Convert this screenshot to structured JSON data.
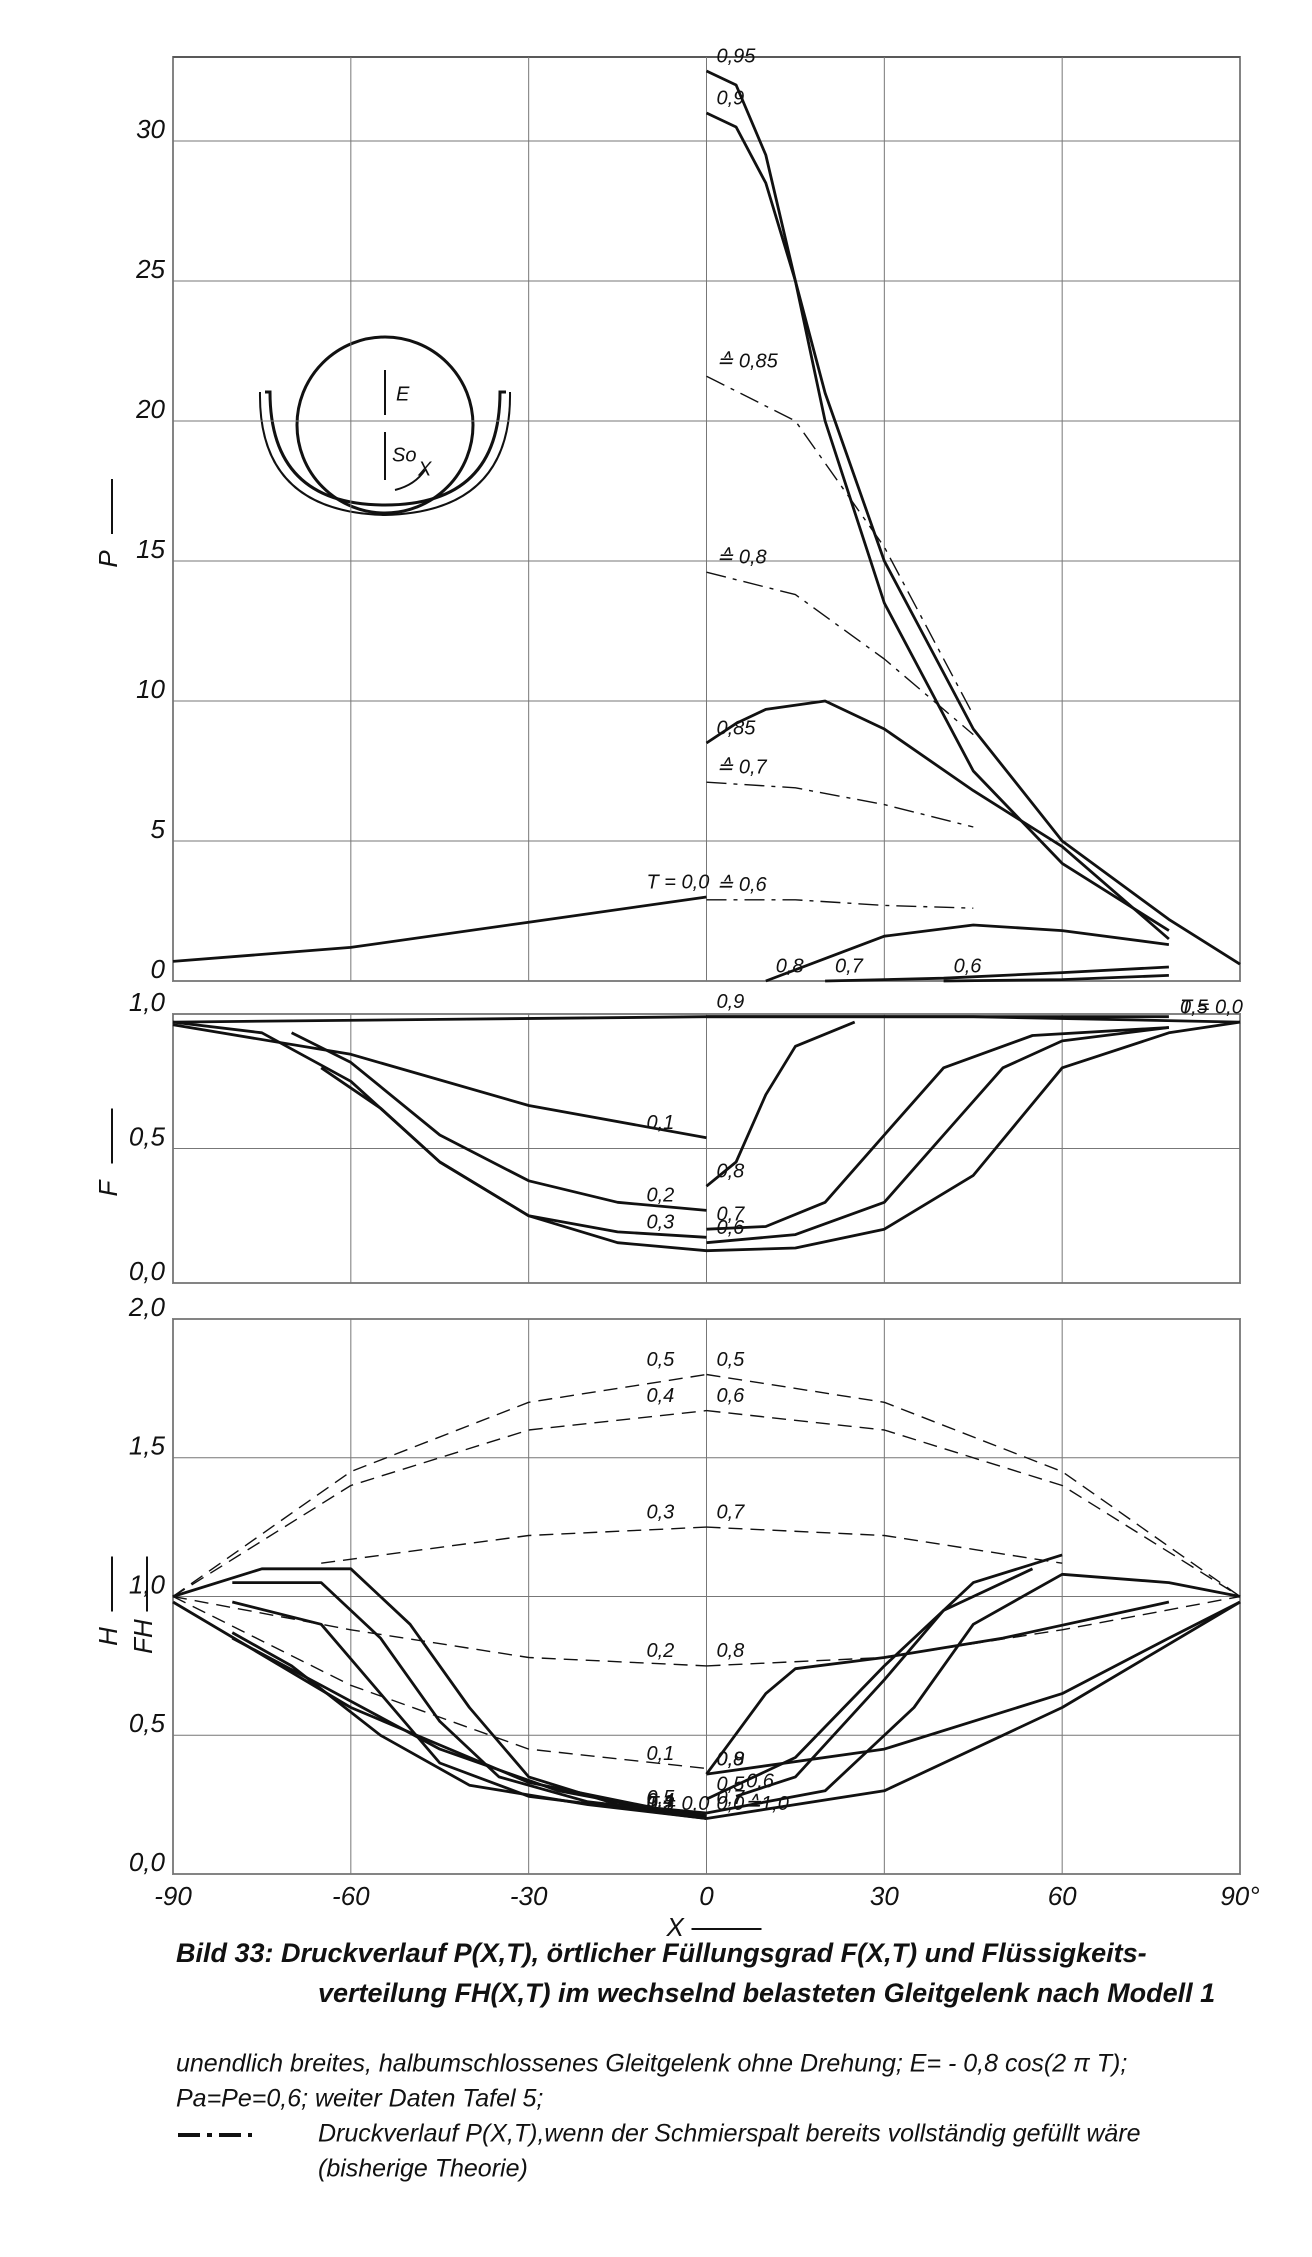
{
  "chart_data": [
    {
      "type": "line",
      "ylabel": "P",
      "xlim": [
        -90,
        90
      ],
      "ylim": [
        0,
        33
      ],
      "xticks": [
        -90,
        -60,
        -30,
        0,
        30,
        60,
        90
      ],
      "yticks": [
        0,
        5,
        10,
        15,
        20,
        25,
        30
      ],
      "grid": true,
      "series": [
        {
          "name": "0,95",
          "color": "#111111",
          "style": "solid",
          "x": [
            0,
            5,
            10,
            15,
            20,
            30,
            45,
            60,
            78
          ],
          "values": [
            32.5,
            32,
            29.5,
            25,
            20,
            13.5,
            7.5,
            4.2,
            1.8
          ]
        },
        {
          "name": "0,9",
          "color": "#111111",
          "style": "solid",
          "x": [
            0,
            5,
            10,
            15,
            20,
            30,
            45,
            60,
            78,
            90
          ],
          "values": [
            31,
            30.5,
            28.5,
            25,
            21,
            15,
            9,
            5,
            2.2,
            0.6
          ]
        },
        {
          "name": "≙ 0,85",
          "color": "#111111",
          "style": "dashdot",
          "x": [
            0,
            15,
            30,
            45
          ],
          "values": [
            21.6,
            20,
            15.5,
            9.5
          ]
        },
        {
          "name": "≙ 0,8",
          "color": "#111111",
          "style": "dashdot",
          "x": [
            0,
            15,
            30,
            45
          ],
          "values": [
            14.6,
            13.8,
            11.5,
            8.8
          ]
        },
        {
          "name": "0,85",
          "color": "#111111",
          "style": "solid",
          "x": [
            0,
            5,
            10,
            20,
            30,
            45,
            60,
            78
          ],
          "values": [
            8.5,
            9.2,
            9.7,
            10,
            9,
            6.8,
            4.8,
            1.5
          ]
        },
        {
          "name": "≙ 0,7",
          "color": "#111111",
          "style": "dashdot",
          "x": [
            0,
            15,
            30,
            45
          ],
          "values": [
            7.1,
            6.9,
            6.3,
            5.5
          ]
        },
        {
          "name": "≙ 0,6",
          "color": "#111111",
          "style": "dashdot",
          "x": [
            0,
            15,
            30,
            45
          ],
          "values": [
            2.9,
            2.9,
            2.7,
            2.6
          ]
        },
        {
          "name": "0,8",
          "color": "#111111",
          "style": "solid",
          "x": [
            10,
            20,
            30,
            45,
            60,
            78
          ],
          "values": [
            0,
            0.8,
            1.6,
            2.0,
            1.8,
            1.3
          ]
        },
        {
          "name": "0,7",
          "color": "#111111",
          "style": "solid",
          "x": [
            20,
            40,
            60,
            78
          ],
          "values": [
            0,
            0.1,
            0.3,
            0.5
          ]
        },
        {
          "name": "0,6",
          "color": "#111111",
          "style": "solid",
          "x": [
            40,
            60,
            78
          ],
          "values": [
            0,
            0.05,
            0.2
          ]
        },
        {
          "name": "T = 0,0",
          "color": "#111111",
          "style": "solid",
          "x": [
            -90,
            -60,
            -30,
            0
          ],
          "values": [
            0.7,
            1.2,
            2.1,
            3.0
          ]
        }
      ]
    },
    {
      "type": "line",
      "ylabel": "F",
      "xlim": [
        -90,
        90
      ],
      "ylim": [
        0,
        1
      ],
      "xticks": [
        -90,
        -60,
        -30,
        0,
        30,
        60,
        90
      ],
      "yticks": [
        {
          "value": 0,
          "label": "0,0"
        },
        {
          "value": 0.5,
          "label": "0,5"
        },
        {
          "value": 1,
          "label": "1,0"
        }
      ],
      "grid": true,
      "series": [
        {
          "name": "T = 0,0",
          "color": "#111111",
          "style": "solid",
          "x": [
            -90,
            -45,
            0,
            45,
            90
          ],
          "values": [
            0.97,
            0.98,
            0.99,
            0.99,
            0.97
          ]
        },
        {
          "name": "0,1",
          "color": "#111111",
          "style": "solid",
          "x": [
            -90,
            -60,
            -30,
            0
          ],
          "values": [
            0.96,
            0.85,
            0.66,
            0.54
          ]
        },
        {
          "name": "0,2",
          "color": "#111111",
          "style": "solid",
          "x": [
            -70,
            -60,
            -45,
            -30,
            -15,
            0
          ],
          "values": [
            0.93,
            0.82,
            0.55,
            0.38,
            0.3,
            0.27
          ]
        },
        {
          "name": "0,3",
          "color": "#111111",
          "style": "solid",
          "x": [
            -65,
            -55,
            -45,
            -30,
            -15,
            0
          ],
          "values": [
            0.8,
            0.65,
            0.45,
            0.25,
            0.19,
            0.17
          ]
        },
        {
          "name": "0,5",
          "color": "#111111",
          "style": "solid",
          "x": [
            -90,
            -75,
            -60,
            -45,
            -30,
            -15,
            0,
            15,
            30,
            45,
            60,
            78,
            90
          ],
          "values": [
            0.97,
            0.93,
            0.75,
            0.45,
            0.25,
            0.15,
            0.12,
            0.13,
            0.2,
            0.4,
            0.8,
            0.93,
            0.97
          ]
        },
        {
          "name": "0,8",
          "color": "#111111",
          "style": "solid",
          "x": [
            0,
            5,
            10,
            15,
            25
          ],
          "values": [
            0.36,
            0.45,
            0.7,
            0.88,
            0.97
          ]
        },
        {
          "name": "0,7",
          "color": "#111111",
          "style": "solid",
          "x": [
            0,
            10,
            20,
            30,
            40,
            55,
            78
          ],
          "values": [
            0.2,
            0.21,
            0.3,
            0.55,
            0.8,
            0.92,
            0.95
          ]
        },
        {
          "name": "0,6",
          "color": "#111111",
          "style": "solid",
          "x": [
            0,
            15,
            30,
            40,
            50,
            60,
            78
          ],
          "values": [
            0.15,
            0.18,
            0.3,
            0.55,
            0.8,
            0.9,
            0.95
          ]
        },
        {
          "name": "0,9",
          "color": "#111111",
          "style": "solid",
          "x": [
            0,
            45,
            78
          ],
          "values": [
            0.99,
            0.99,
            0.99
          ]
        }
      ]
    },
    {
      "type": "line",
      "ylabels": [
        "H",
        "FH"
      ],
      "xlabel": "X",
      "xlim": [
        -90,
        90
      ],
      "ylim": [
        0,
        2
      ],
      "xticks": [
        -90,
        -60,
        -30,
        0,
        30,
        60,
        {
          "value": 90,
          "label": "90°"
        }
      ],
      "yticks": [
        {
          "value": 0,
          "label": "0,0"
        },
        {
          "value": 0.5,
          "label": "0,5"
        },
        {
          "value": 1,
          "label": "1,0"
        },
        {
          "value": 1.5,
          "label": "1,5"
        },
        {
          "value": 2,
          "label": "2,0"
        }
      ],
      "grid": true,
      "series": [
        {
          "name": "0,5",
          "color": "#111111",
          "style": "dashed",
          "x": [
            -90,
            -60,
            -30,
            0
          ],
          "values": [
            1.0,
            1.45,
            1.7,
            1.8
          ]
        },
        {
          "name": "0,5",
          "color": "#111111",
          "style": "dashed",
          "x": [
            0,
            30,
            60,
            90
          ],
          "values": [
            1.8,
            1.7,
            1.45,
            1.0
          ]
        },
        {
          "name": "0,4",
          "color": "#111111",
          "style": "dashed",
          "x": [
            -90,
            -60,
            -30,
            0
          ],
          "values": [
            1.0,
            1.4,
            1.6,
            1.67
          ]
        },
        {
          "name": "0,6",
          "color": "#111111",
          "style": "dashed",
          "x": [
            0,
            30,
            60,
            90
          ],
          "values": [
            1.67,
            1.6,
            1.4,
            1.0
          ]
        },
        {
          "name": "0,3",
          "color": "#111111",
          "style": "dashed",
          "x": [
            -65,
            -30,
            0
          ],
          "values": [
            1.12,
            1.22,
            1.25
          ]
        },
        {
          "name": "0,7",
          "color": "#111111",
          "style": "dashed",
          "x": [
            0,
            30,
            60
          ],
          "values": [
            1.25,
            1.22,
            1.12
          ]
        },
        {
          "name": "0,2",
          "color": "#111111",
          "style": "dashed",
          "x": [
            -90,
            -60,
            -30,
            0
          ],
          "values": [
            1.0,
            0.88,
            0.78,
            0.75
          ]
        },
        {
          "name": "0,8",
          "color": "#111111",
          "style": "dashed",
          "x": [
            0,
            30,
            60,
            90
          ],
          "values": [
            0.75,
            0.78,
            0.88,
            1.0
          ]
        },
        {
          "name": "0,1",
          "color": "#111111",
          "style": "dashed",
          "x": [
            -90,
            -60,
            -30,
            0
          ],
          "values": [
            1.0,
            0.68,
            0.45,
            0.38
          ]
        },
        {
          "name": "0,5",
          "color": "#111111",
          "style": "solid",
          "x": [
            -90,
            -75,
            -60,
            -50,
            -40,
            -30,
            -15,
            0
          ],
          "values": [
            1.0,
            1.1,
            1.1,
            0.9,
            0.6,
            0.35,
            0.25,
            0.22
          ]
        },
        {
          "name": "0,4",
          "color": "#111111",
          "style": "solid",
          "x": [
            -80,
            -65,
            -55,
            -45,
            -35,
            -20,
            0
          ],
          "values": [
            1.05,
            1.05,
            0.85,
            0.55,
            0.35,
            0.26,
            0.21
          ]
        },
        {
          "name": "0,3",
          "color": "#111111",
          "style": "solid",
          "x": [
            -80,
            -65,
            -55,
            -45,
            -30,
            0
          ],
          "values": [
            0.98,
            0.9,
            0.65,
            0.4,
            0.28,
            0.2
          ]
        },
        {
          "name": "0,2",
          "color": "#111111",
          "style": "solid",
          "x": [
            -80,
            -70,
            -55,
            -40,
            -20,
            0
          ],
          "values": [
            0.87,
            0.75,
            0.5,
            0.32,
            0.25,
            0.2
          ]
        },
        {
          "name": "0,1",
          "color": "#111111",
          "style": "solid",
          "x": [
            -80,
            -65,
            -45,
            -25,
            0
          ],
          "values": [
            0.85,
            0.68,
            0.45,
            0.3,
            0.2
          ]
        },
        {
          "name": "T = 0,0",
          "color": "#111111",
          "style": "solid",
          "x": [
            -90,
            -60,
            -30,
            0
          ],
          "values": [
            0.98,
            0.6,
            0.33,
            0.2
          ]
        },
        {
          "name": "0,5",
          "color": "#111111",
          "style": "solid",
          "x": [
            0,
            15,
            30,
            45,
            60
          ],
          "values": [
            0.27,
            0.42,
            0.75,
            1.05,
            1.15
          ]
        },
        {
          "name": "0,6",
          "color": "#111111",
          "style": "solid",
          "x": [
            5,
            15,
            30,
            40,
            55
          ],
          "values": [
            0.28,
            0.35,
            0.7,
            0.95,
            1.1
          ]
        },
        {
          "name": "0,7",
          "color": "#111111",
          "style": "solid",
          "x": [
            0,
            20,
            35,
            45,
            60,
            78,
            90
          ],
          "values": [
            0.22,
            0.3,
            0.6,
            0.9,
            1.08,
            1.05,
            1.0
          ]
        },
        {
          "name": "0,8",
          "color": "#111111",
          "style": "solid",
          "x": [
            0,
            10,
            15,
            30,
            50,
            78
          ],
          "values": [
            0.36,
            0.65,
            0.74,
            0.78,
            0.85,
            0.98
          ]
        },
        {
          "name": "0,9",
          "color": "#111111",
          "style": "solid",
          "x": [
            0,
            30,
            60,
            78,
            90
          ],
          "values": [
            0.36,
            0.45,
            0.65,
            0.85,
            0.98
          ]
        },
        {
          "name": "0,0≙1,0",
          "color": "#111111",
          "style": "solid",
          "x": [
            0,
            30,
            60,
            90
          ],
          "values": [
            0.2,
            0.3,
            0.6,
            0.98
          ]
        }
      ]
    }
  ],
  "inset": {
    "labels": [
      "E",
      "So",
      "X"
    ]
  },
  "caption": {
    "title": [
      "Bild 33: Druckverlauf P(X,T), örtlicher Füllungsgrad F(X,T) und Flüssigkeits-",
      "verteilung FH(X,T) im wechselnd belasteten Gleitgelenk nach Modell 1"
    ],
    "notes": [
      "unendlich breites, halbumschlossenes Gleitgelenk ohne Drehung; E= - 0,8 cos(2 π T);",
      "Pa=Pe=0,6; weiter Daten Tafel 5;"
    ],
    "legend": [
      "Druckverlauf P(X,T),wenn der Schmierspalt bereits vollständig gefüllt wäre",
      "(bisherige Theorie)"
    ]
  }
}
